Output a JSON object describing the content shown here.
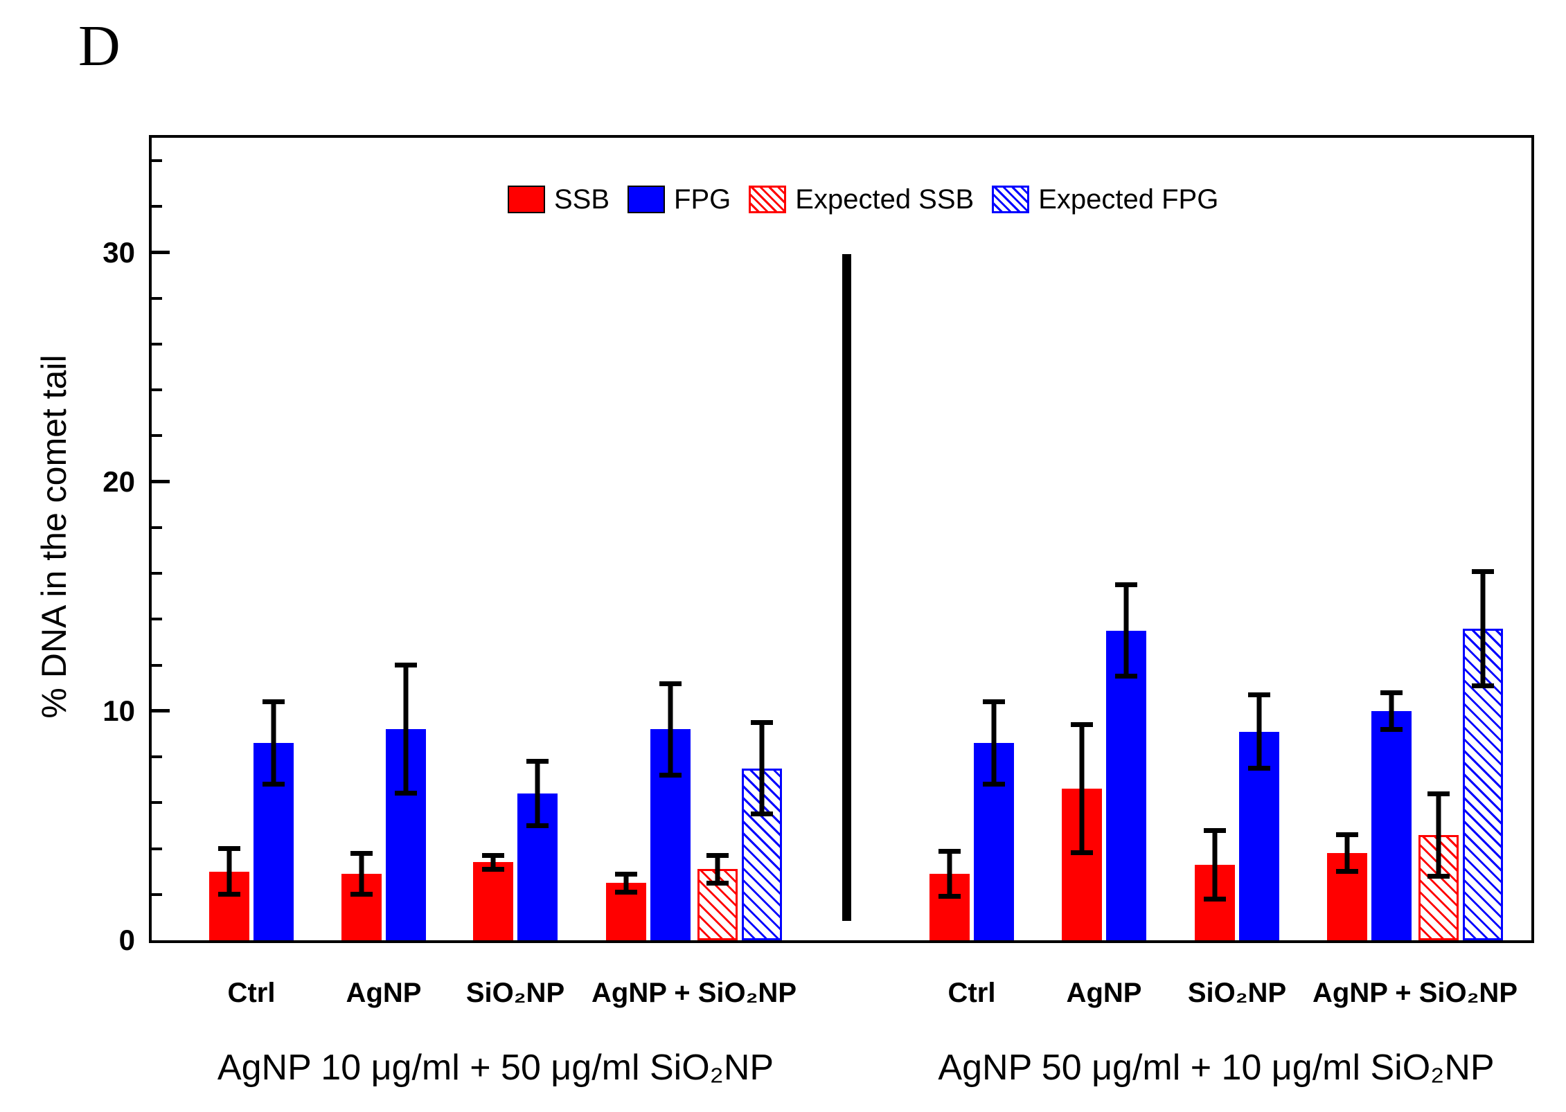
{
  "panel_label": "D",
  "chart_data": {
    "type": "bar",
    "title": "",
    "ylabel": "% DNA in the comet tail",
    "xlabel": "",
    "ylim": [
      0,
      35
    ],
    "yticks_major": [
      0,
      10,
      20,
      30
    ],
    "ytick_minor_step": 2,
    "grid": false,
    "legend_position": "top-center",
    "error_bars": true,
    "series": [
      {
        "name": "SSB",
        "color": "#ff0000",
        "hatch": false
      },
      {
        "name": "FPG",
        "color": "#0000ff",
        "hatch": false
      },
      {
        "name": "Expected SSB",
        "color": "#ff0000",
        "hatch": true
      },
      {
        "name": "Expected FPG",
        "color": "#0000ff",
        "hatch": true
      }
    ],
    "groups": [
      {
        "title": "AgNP 10 μg/ml + 50 μg/ml SiO₂NP",
        "categories": [
          {
            "label": "Ctrl",
            "bars": [
              {
                "series": "SSB",
                "value": 3.0,
                "error": 1.1
              },
              {
                "series": "FPG",
                "value": 8.6,
                "error": 1.9
              }
            ]
          },
          {
            "label": "AgNP",
            "bars": [
              {
                "series": "SSB",
                "value": 2.9,
                "error": 1.0
              },
              {
                "series": "FPG",
                "value": 9.2,
                "error": 2.9
              }
            ]
          },
          {
            "label": "SiO₂NP",
            "bars": [
              {
                "series": "SSB",
                "value": 3.4,
                "error": 0.4
              },
              {
                "series": "FPG",
                "value": 6.4,
                "error": 1.5
              }
            ]
          },
          {
            "label": "AgNP + SiO₂NP",
            "bars": [
              {
                "series": "SSB",
                "value": 2.5,
                "error": 0.5
              },
              {
                "series": "FPG",
                "value": 9.2,
                "error": 2.1
              },
              {
                "series": "Expected SSB",
                "value": 3.1,
                "error": 0.7
              },
              {
                "series": "Expected FPG",
                "value": 7.5,
                "error": 2.1
              }
            ]
          }
        ]
      },
      {
        "title": "AgNP 50 μg/ml + 10 μg/ml SiO₂NP",
        "categories": [
          {
            "label": "Ctrl",
            "bars": [
              {
                "series": "SSB",
                "value": 2.9,
                "error": 1.1
              },
              {
                "series": "FPG",
                "value": 8.6,
                "error": 1.9
              }
            ]
          },
          {
            "label": "AgNP",
            "bars": [
              {
                "series": "SSB",
                "value": 6.6,
                "error": 2.9
              },
              {
                "series": "FPG",
                "value": 13.5,
                "error": 2.1
              }
            ]
          },
          {
            "label": "SiO₂NP",
            "bars": [
              {
                "series": "SSB",
                "value": 3.3,
                "error": 1.6
              },
              {
                "series": "FPG",
                "value": 9.1,
                "error": 1.7
              }
            ]
          },
          {
            "label": "AgNP + SiO₂NP",
            "bars": [
              {
                "series": "SSB",
                "value": 3.8,
                "error": 0.9
              },
              {
                "series": "FPG",
                "value": 10.0,
                "error": 0.9
              },
              {
                "series": "Expected SSB",
                "value": 4.6,
                "error": 1.9
              },
              {
                "series": "Expected FPG",
                "value": 13.6,
                "error": 2.6
              }
            ]
          }
        ]
      }
    ]
  }
}
